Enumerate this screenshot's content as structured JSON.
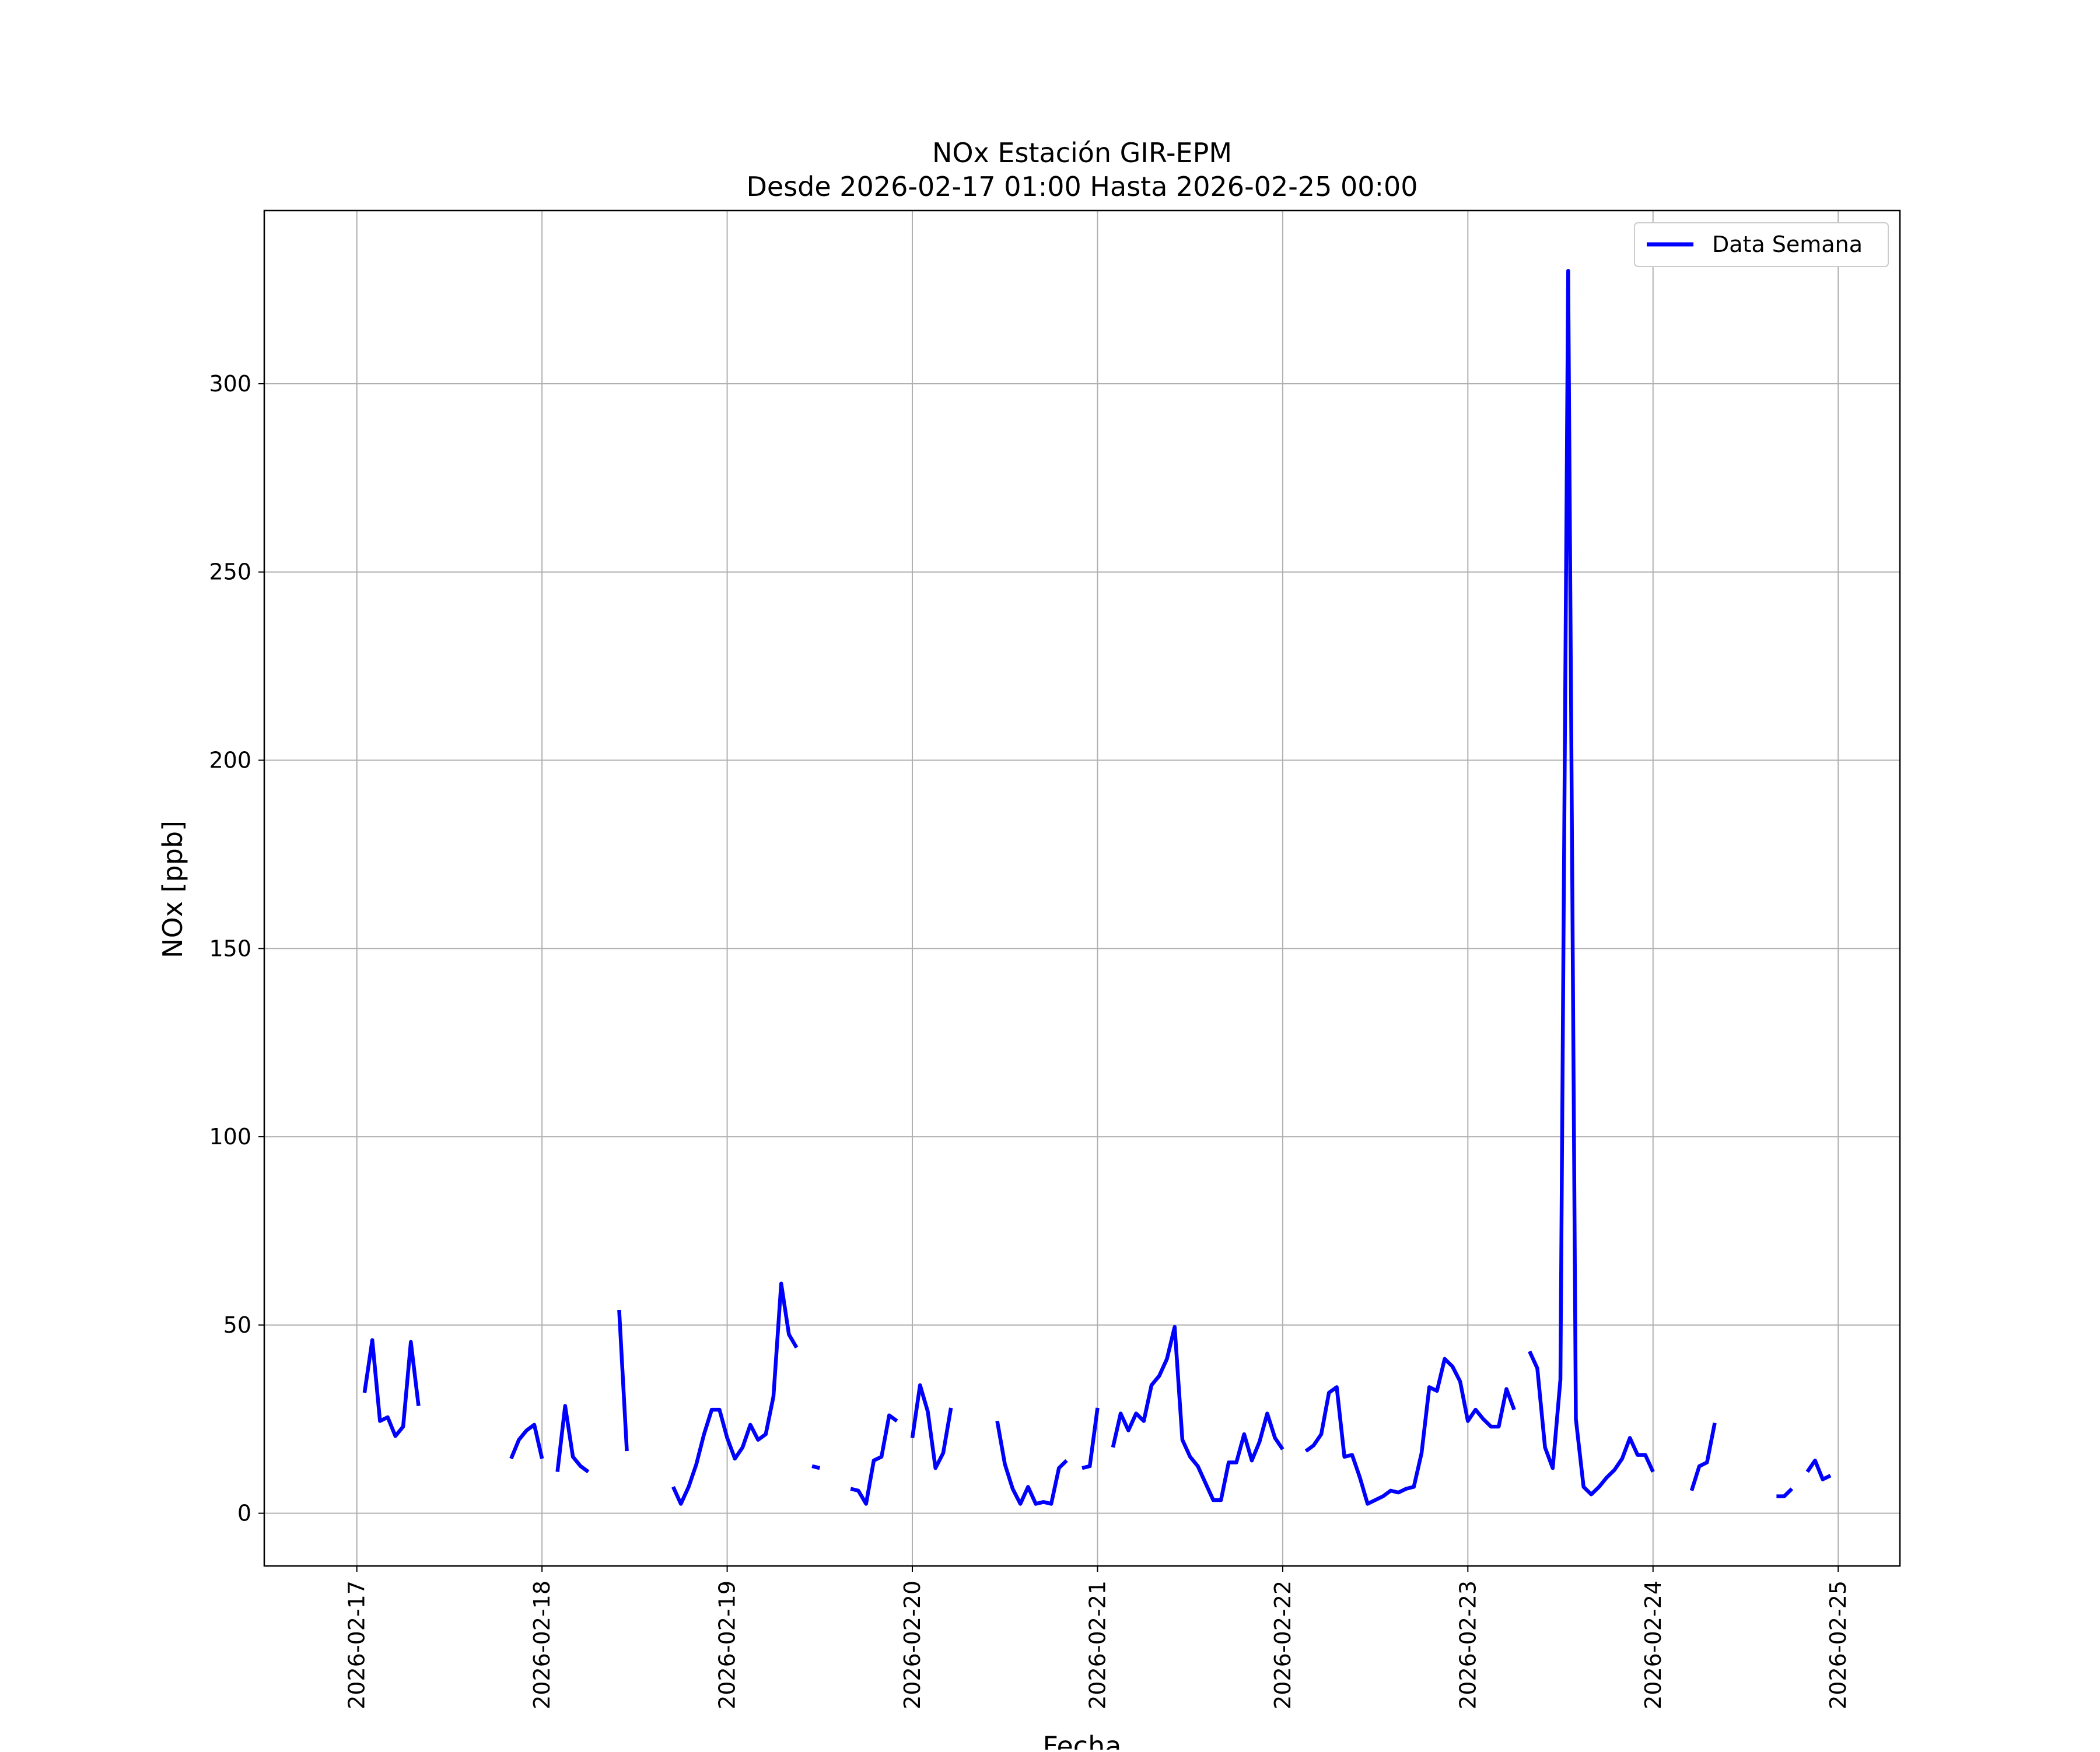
{
  "chart_data": {
    "type": "line",
    "title": "NOx Estación GIR-EPM",
    "subtitle": "Desde 2026-02-17 01:00 Hasta 2026-02-25 00:00",
    "xlabel": "Fecha",
    "ylabel": "NOx [ppb]",
    "x_tick_labels": [
      "2026-02-17",
      "2026-02-18",
      "2026-02-19",
      "2026-02-20",
      "2026-02-21",
      "2026-02-22",
      "2026-02-23",
      "2026-02-24",
      "2026-02-25"
    ],
    "y_ticks": [
      0,
      50,
      100,
      150,
      200,
      250,
      300
    ],
    "xlim": [
      "2026-02-16 12:00",
      "2026-02-25 08:00"
    ],
    "ylim": [
      -14,
      346
    ],
    "grid": true,
    "legend_position": "top-right",
    "series": [
      {
        "name": "Data Semana",
        "color": "#0000ff",
        "segments": [
          [
            [
              "2026-02-17 01:00",
              32
            ],
            [
              "2026-02-17 02:00",
              46
            ],
            [
              "2026-02-17 03:00",
              24.5
            ],
            [
              "2026-02-17 04:00",
              25.5
            ],
            [
              "2026-02-17 05:00",
              20.5
            ],
            [
              "2026-02-17 06:00",
              23
            ],
            [
              "2026-02-17 07:00",
              45.5
            ],
            [
              "2026-02-17 08:00",
              28.5
            ]
          ],
          [
            [
              "2026-02-17 20:00",
              14.5
            ],
            [
              "2026-02-17 21:00",
              19.5
            ],
            [
              "2026-02-17 22:00",
              22
            ],
            [
              "2026-02-17 23:00",
              23.5
            ],
            [
              "2026-02-18 00:00",
              14.5
            ]
          ],
          [
            [
              "2026-02-18 02:00",
              11
            ],
            [
              "2026-02-18 03:00",
              28.5
            ],
            [
              "2026-02-18 04:00",
              15
            ],
            [
              "2026-02-18 05:00",
              12.5
            ],
            [
              "2026-02-18 06:00",
              11
            ]
          ],
          [
            [
              "2026-02-18 10:00",
              54
            ],
            [
              "2026-02-18 11:00",
              16.5
            ]
          ],
          [
            [
              "2026-02-18 17:00",
              7
            ],
            [
              "2026-02-18 18:00",
              2.5
            ],
            [
              "2026-02-18 19:00",
              7
            ],
            [
              "2026-02-18 20:00",
              13
            ],
            [
              "2026-02-18 21:00",
              21
            ],
            [
              "2026-02-18 22:00",
              27.5
            ],
            [
              "2026-02-18 23:00",
              27.5
            ],
            [
              "2026-02-19 00:00",
              20
            ],
            [
              "2026-02-19 01:00",
              14.5
            ],
            [
              "2026-02-19 02:00",
              17.5
            ],
            [
              "2026-02-19 03:00",
              23.5
            ],
            [
              "2026-02-19 04:00",
              19.5
            ],
            [
              "2026-02-19 05:00",
              21
            ],
            [
              "2026-02-19 06:00",
              31
            ],
            [
              "2026-02-19 07:00",
              61
            ],
            [
              "2026-02-19 08:00",
              47.5
            ],
            [
              "2026-02-19 09:00",
              44
            ]
          ],
          [
            [
              "2026-02-19 11:00",
              12.5
            ],
            [
              "2026-02-19 12:00",
              12
            ]
          ],
          [
            [
              "2026-02-19 16:00",
              6.5
            ],
            [
              "2026-02-19 17:00",
              6
            ],
            [
              "2026-02-19 18:00",
              2.5
            ],
            [
              "2026-02-19 19:00",
              14
            ],
            [
              "2026-02-19 20:00",
              15
            ],
            [
              "2026-02-19 21:00",
              26
            ],
            [
              "2026-02-19 22:00",
              24.5
            ]
          ],
          [
            [
              "2026-02-20 00:00",
              20
            ],
            [
              "2026-02-20 01:00",
              34
            ],
            [
              "2026-02-20 02:00",
              27
            ],
            [
              "2026-02-20 03:00",
              12
            ],
            [
              "2026-02-20 04:00",
              16
            ],
            [
              "2026-02-20 05:00",
              28
            ]
          ],
          [
            [
              "2026-02-20 11:00",
              24.5
            ],
            [
              "2026-02-20 12:00",
              13
            ],
            [
              "2026-02-20 13:00",
              6.5
            ],
            [
              "2026-02-20 14:00",
              2.5
            ],
            [
              "2026-02-20 15:00",
              7
            ],
            [
              "2026-02-20 16:00",
              2.5
            ],
            [
              "2026-02-20 17:00",
              3
            ],
            [
              "2026-02-20 18:00",
              2.5
            ],
            [
              "2026-02-20 19:00",
              12
            ],
            [
              "2026-02-20 20:00",
              14
            ]
          ],
          [
            [
              "2026-02-20 22:00",
              12
            ],
            [
              "2026-02-20 23:00",
              12.5
            ],
            [
              "2026-02-21 00:00",
              28
            ]
          ],
          [
            [
              "2026-02-21 02:00",
              17.5
            ],
            [
              "2026-02-21 03:00",
              26.5
            ],
            [
              "2026-02-21 04:00",
              22
            ],
            [
              "2026-02-21 05:00",
              26.5
            ],
            [
              "2026-02-21 06:00",
              24.5
            ],
            [
              "2026-02-21 07:00",
              34
            ],
            [
              "2026-02-21 08:00",
              36.5
            ],
            [
              "2026-02-21 09:00",
              41
            ],
            [
              "2026-02-21 10:00",
              49.5
            ],
            [
              "2026-02-21 11:00",
              19.5
            ],
            [
              "2026-02-21 12:00",
              15
            ],
            [
              "2026-02-21 13:00",
              12.5
            ],
            [
              "2026-02-21 14:00",
              8
            ],
            [
              "2026-02-21 15:00",
              3.5
            ],
            [
              "2026-02-21 16:00",
              3.5
            ],
            [
              "2026-02-21 17:00",
              13.5
            ],
            [
              "2026-02-21 18:00",
              13.5
            ],
            [
              "2026-02-21 19:00",
              21
            ],
            [
              "2026-02-21 20:00",
              14
            ],
            [
              "2026-02-21 21:00",
              19
            ],
            [
              "2026-02-21 22:00",
              26.5
            ],
            [
              "2026-02-21 23:00",
              20
            ],
            [
              "2026-02-22 00:00",
              17
            ]
          ],
          [
            [
              "2026-02-22 03:00",
              16.5
            ],
            [
              "2026-02-22 04:00",
              18
            ],
            [
              "2026-02-22 05:00",
              21
            ],
            [
              "2026-02-22 06:00",
              32
            ],
            [
              "2026-02-22 07:00",
              33.5
            ],
            [
              "2026-02-22 08:00",
              15
            ],
            [
              "2026-02-22 09:00",
              15.5
            ],
            [
              "2026-02-22 10:00",
              9.5
            ],
            [
              "2026-02-22 11:00",
              2.5
            ],
            [
              "2026-02-22 12:00",
              3.5
            ],
            [
              "2026-02-22 13:00",
              4.5
            ],
            [
              "2026-02-22 14:00",
              6
            ],
            [
              "2026-02-22 15:00",
              5.5
            ],
            [
              "2026-02-22 16:00",
              6.5
            ],
            [
              "2026-02-22 17:00",
              7
            ],
            [
              "2026-02-22 18:00",
              16
            ],
            [
              "2026-02-22 19:00",
              33.5
            ],
            [
              "2026-02-22 20:00",
              32.5
            ],
            [
              "2026-02-22 21:00",
              41
            ],
            [
              "2026-02-22 22:00",
              39
            ],
            [
              "2026-02-22 23:00",
              35
            ],
            [
              "2026-02-23 00:00",
              24.5
            ],
            [
              "2026-02-23 01:00",
              27.5
            ],
            [
              "2026-02-23 02:00",
              25
            ],
            [
              "2026-02-23 03:00",
              23
            ],
            [
              "2026-02-23 04:00",
              23
            ],
            [
              "2026-02-23 05:00",
              33
            ],
            [
              "2026-02-23 06:00",
              27.5
            ]
          ],
          [
            [
              "2026-02-23 08:00",
              43
            ],
            [
              "2026-02-23 09:00",
              38.5
            ],
            [
              "2026-02-23 10:00",
              17.5
            ],
            [
              "2026-02-23 11:00",
              12
            ],
            [
              "2026-02-23 12:00",
              35.5
            ],
            [
              "2026-02-23 13:00",
              330
            ],
            [
              "2026-02-23 14:00",
              25
            ],
            [
              "2026-02-23 15:00",
              7
            ],
            [
              "2026-02-23 16:00",
              5
            ],
            [
              "2026-02-23 17:00",
              7
            ],
            [
              "2026-02-23 18:00",
              9.5
            ],
            [
              "2026-02-23 19:00",
              11.5
            ],
            [
              "2026-02-23 20:00",
              14.5
            ],
            [
              "2026-02-23 21:00",
              20
            ],
            [
              "2026-02-23 22:00",
              15.5
            ],
            [
              "2026-02-23 23:00",
              15.5
            ],
            [
              "2026-02-24 00:00",
              11
            ]
          ],
          [
            [
              "2026-02-24 05:00",
              6
            ],
            [
              "2026-02-24 06:00",
              12.5
            ],
            [
              "2026-02-24 07:00",
              13.5
            ],
            [
              "2026-02-24 08:00",
              24
            ]
          ],
          [
            [
              "2026-02-24 16:00",
              4.5
            ],
            [
              "2026-02-24 17:00",
              4.5
            ],
            [
              "2026-02-24 18:00",
              6.5
            ]
          ],
          [
            [
              "2026-02-24 20:00",
              11
            ],
            [
              "2026-02-24 21:00",
              14
            ],
            [
              "2026-02-24 22:00",
              9
            ],
            [
              "2026-02-24 23:00",
              10
            ]
          ]
        ]
      }
    ]
  }
}
